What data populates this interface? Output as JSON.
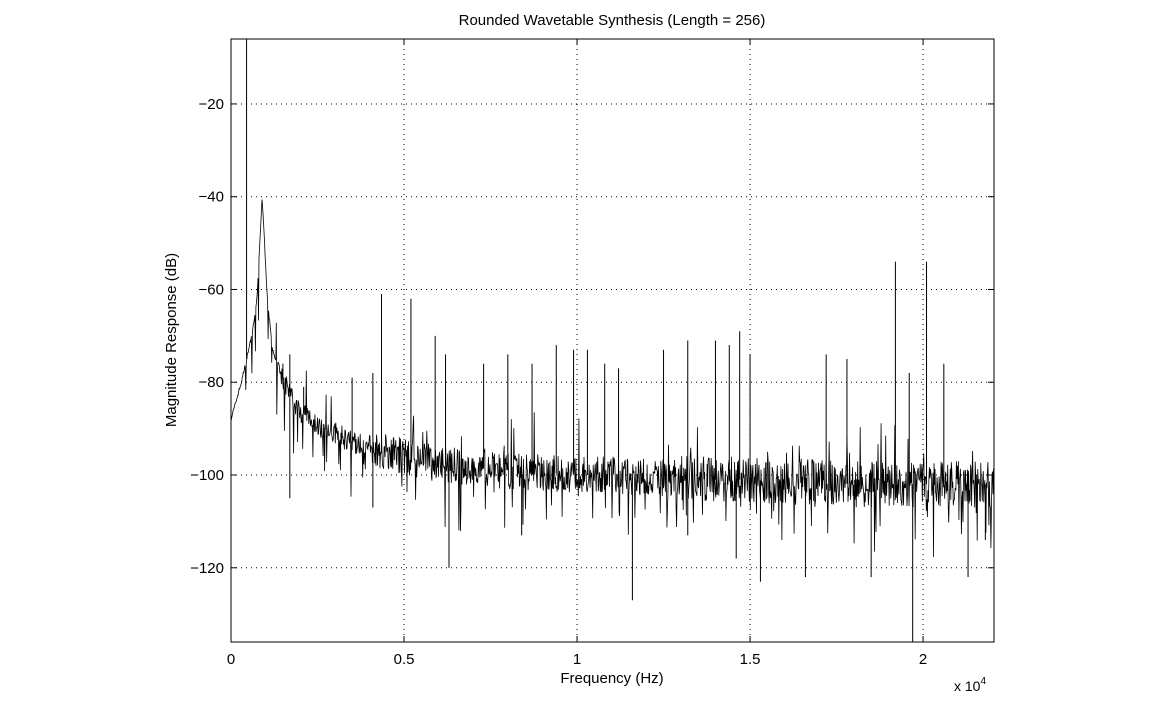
{
  "chart_data": {
    "type": "line",
    "title": "Rounded Wavetable Synthesis (Length = 256)",
    "xlabel": "Frequency (Hz)",
    "ylabel": "Magnitude Response (dB)",
    "x_exponent_label": "x 10",
    "x_exponent_power": "4",
    "xlim": [
      0,
      22050
    ],
    "ylim": [
      -136,
      -6
    ],
    "x_ticks": [
      0,
      5000,
      10000,
      15000,
      20000
    ],
    "x_tick_labels": [
      "0",
      "0.5",
      "1",
      "1.5",
      "2"
    ],
    "y_ticks": [
      -120,
      -100,
      -80,
      -60,
      -40,
      -20
    ],
    "y_tick_labels": [
      "−120",
      "−100",
      "−80",
      "−60",
      "−40",
      "−20"
    ],
    "grid": true,
    "line_color": "#000000",
    "series": [
      {
        "x": [
          0,
          150,
          300,
          450,
          600,
          750,
          900,
          1050,
          1200,
          1400,
          1600,
          1800,
          2000,
          2300,
          2600,
          3000,
          3500,
          4000,
          4500,
          5000,
          5500,
          6000,
          7000,
          8000,
          9000,
          10000,
          11000,
          12000,
          13000,
          14000,
          15000,
          16000,
          17000,
          18000,
          19000,
          20000,
          21000,
          22050
        ],
        "y": [
          -88,
          -84,
          -80,
          -75,
          -70,
          -62,
          -40,
          -62,
          -73,
          -78,
          -81,
          -84,
          -86,
          -88,
          -90,
          -91,
          -93,
          -94,
          -95,
          -96,
          -97,
          -97.5,
          -98.5,
          -99,
          -99.5,
          -100,
          -100,
          -100.5,
          -100.5,
          -101,
          -101,
          -101.5,
          -101.5,
          -102,
          -102,
          -102,
          -102,
          -102
        ]
      }
    ],
    "peaks": [
      {
        "x": 450,
        "y": -6
      },
      {
        "x": 1500,
        "y": -76
      },
      {
        "x": 1700,
        "y": -74
      },
      {
        "x": 2100,
        "y": -81
      },
      {
        "x": 3500,
        "y": -79
      },
      {
        "x": 4100,
        "y": -78
      },
      {
        "x": 4350,
        "y": -61
      },
      {
        "x": 5200,
        "y": -62
      },
      {
        "x": 5900,
        "y": -70
      },
      {
        "x": 6200,
        "y": -74
      },
      {
        "x": 7300,
        "y": -76
      },
      {
        "x": 8000,
        "y": -74
      },
      {
        "x": 8700,
        "y": -76
      },
      {
        "x": 9400,
        "y": -72
      },
      {
        "x": 9900,
        "y": -73
      },
      {
        "x": 10300,
        "y": -73
      },
      {
        "x": 10800,
        "y": -76
      },
      {
        "x": 11200,
        "y": -77
      },
      {
        "x": 12500,
        "y": -73
      },
      {
        "x": 13200,
        "y": -71
      },
      {
        "x": 14000,
        "y": -71
      },
      {
        "x": 14400,
        "y": -72
      },
      {
        "x": 14700,
        "y": -69
      },
      {
        "x": 15000,
        "y": -74
      },
      {
        "x": 17200,
        "y": -74
      },
      {
        "x": 17800,
        "y": -75
      },
      {
        "x": 19200,
        "y": -54
      },
      {
        "x": 19600,
        "y": -78
      },
      {
        "x": 20100,
        "y": -54
      },
      {
        "x": 20600,
        "y": -76
      }
    ],
    "dips": [
      {
        "x": 1700,
        "y": -105
      },
      {
        "x": 4100,
        "y": -107
      },
      {
        "x": 6300,
        "y": -120
      },
      {
        "x": 8400,
        "y": -113
      },
      {
        "x": 11600,
        "y": -127
      },
      {
        "x": 13200,
        "y": -113
      },
      {
        "x": 14600,
        "y": -118
      },
      {
        "x": 15300,
        "y": -123
      },
      {
        "x": 16600,
        "y": -122
      },
      {
        "x": 18500,
        "y": -122
      },
      {
        "x": 19700,
        "y": -136
      },
      {
        "x": 21300,
        "y": -122
      },
      {
        "x": 21800,
        "y": -114
      }
    ]
  }
}
